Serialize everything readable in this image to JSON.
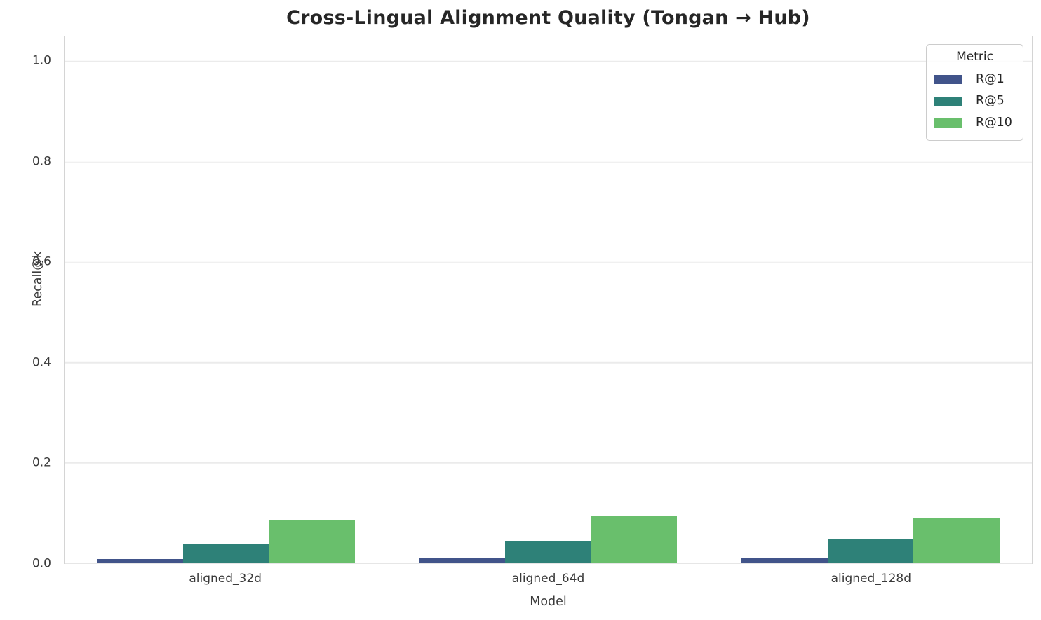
{
  "chart_data": {
    "type": "bar",
    "title": "Cross-Lingual Alignment Quality (Tongan → Hub)",
    "xlabel": "Model",
    "ylabel": "Recall@k",
    "categories": [
      "aligned_32d",
      "aligned_64d",
      "aligned_128d"
    ],
    "series": [
      {
        "name": "R@1",
        "color": "#41548a",
        "values": [
          0.009,
          0.011,
          0.011
        ]
      },
      {
        "name": "R@5",
        "color": "#2e8178",
        "values": [
          0.039,
          0.045,
          0.047
        ]
      },
      {
        "name": "R@10",
        "color": "#69bf6c",
        "values": [
          0.087,
          0.093,
          0.09
        ]
      }
    ],
    "ylim": [
      0,
      1.05
    ],
    "yticks": [
      0.0,
      0.2,
      0.4,
      0.6,
      0.8,
      1.0
    ],
    "ytick_labels": [
      "0.0",
      "0.2",
      "0.4",
      "0.6",
      "0.8",
      "1.0"
    ],
    "legend_title": "Metric",
    "legend_position": "upper right",
    "grid": true,
    "bar_group_total_width_fraction": 0.8,
    "colors": {
      "grid": "#ebebeb",
      "spine": "#d4d4d4",
      "title_text": "#262626",
      "tick_text": "#3a3a3a",
      "background": "#ffffff"
    }
  }
}
